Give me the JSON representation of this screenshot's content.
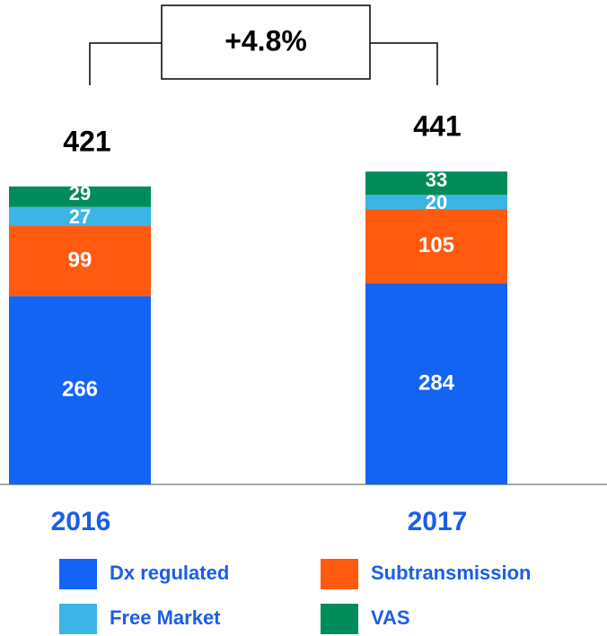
{
  "chart_data": {
    "type": "stacked_bar",
    "categories": [
      "2016",
      "2017"
    ],
    "series": [
      {
        "name": "Dx regulated",
        "color": "#1464f4",
        "values": [
          266,
          284
        ]
      },
      {
        "name": "Subtransmission",
        "color": "#ff5a0f",
        "values": [
          99,
          105
        ]
      },
      {
        "name": "Free Market",
        "color": "#3cb4e6",
        "values": [
          27,
          20
        ]
      },
      {
        "name": "VAS",
        "color": "#008c5a",
        "values": [
          29,
          33
        ]
      }
    ],
    "totals": [
      421,
      441
    ],
    "annotation": "+4.8%"
  }
}
